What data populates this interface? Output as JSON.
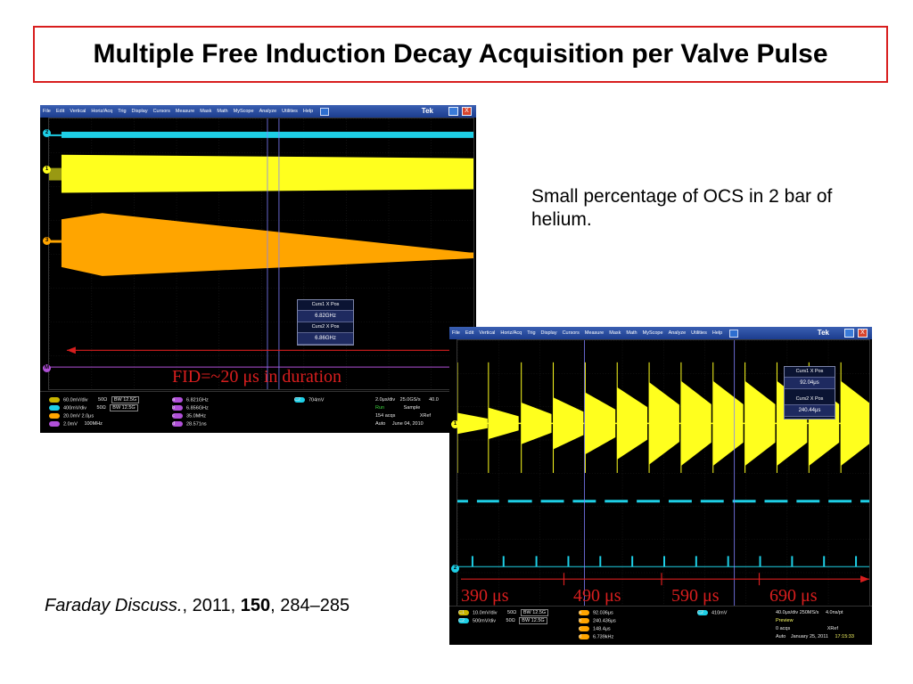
{
  "slide": {
    "title": "Multiple Free Induction Decay Acquisition per Valve Pulse",
    "note": "Small percentage of OCS in 2 bar of helium.",
    "citation": {
      "journal": "Faraday Discuss.",
      "sep1": ", ",
      "year": "2011",
      "sep2": ", ",
      "volume": "150",
      "sep3": ", ",
      "pages": "284–285"
    }
  },
  "colors": {
    "ch1": "#ffff1e",
    "ch2": "#1ecfe6",
    "ch3": "#ffa500",
    "annotation": "#d81e1e",
    "cursor": "#8080ff"
  },
  "menu": [
    "File",
    "Edit",
    "Vertical",
    "Horiz/Acq",
    "Trig",
    "Display",
    "Cursors",
    "Measure",
    "Mask",
    "Math",
    "MyScope",
    "Analyze",
    "Utilities",
    "Help"
  ],
  "brand": "Tek",
  "close_glyph": "X",
  "scope1": {
    "markers": {
      "ch2": "2",
      "ch1": "1",
      "ch3": "3",
      "math": "M"
    },
    "annotation": "FID=~20 μs in duration",
    "cursor_panel": {
      "t1": "Curs1 X Pos",
      "v1": "6.82GHz",
      "t2": "Curs2 X Pos",
      "v2": "6.86GHz"
    },
    "channels": [
      {
        "chip": "C1",
        "scale": "60.0mV/div",
        "imp": "50Ω",
        "bw": "BW 12.5G"
      },
      {
        "chip": "C2",
        "scale": "400mV/div",
        "imp": "50Ω",
        "bw": "BW 12.5G"
      },
      {
        "chip": "M1",
        "scale": "20.0mV",
        "time": "2.0μs"
      },
      {
        "chip": "M2",
        "scale": "2.0mV",
        "bw": "100MHz"
      }
    ],
    "measurements": [
      {
        "chip": "a",
        "value": "6.821GHz"
      },
      {
        "chip": "b",
        "value": "6.856GHz"
      },
      {
        "chip": "c",
        "value": "35.0MHz"
      },
      {
        "chip": "d",
        "value": "28.571ns"
      }
    ],
    "trigger": {
      "chip": "C2",
      "value": "704mV"
    },
    "timebase": {
      "div": "2.0μs/div",
      "rate": "25.0GS/s",
      "res": "40.0",
      "state": "Run",
      "mode": "Sample",
      "acqs": "154 acqs",
      "ref": "XRef",
      "auto": "Auto",
      "date": "June 04, 2010"
    }
  },
  "scope2": {
    "markers": {
      "ch1": "1",
      "ch2": "2"
    },
    "intervals": [
      "390 μs",
      "490 μs",
      "590 μs",
      "690 μs"
    ],
    "cursor_panel": {
      "t1": "Curs1 X Pos",
      "v1": "92.04μs",
      "t2": "Curs2 X Pos",
      "v2": "240.44μs"
    },
    "channels": [
      {
        "chip": "C1",
        "scale": "10.0mV/div",
        "imp": "50Ω",
        "bw": "BW 12.5G"
      },
      {
        "chip": "C2",
        "scale": "500mV/div",
        "imp": "50Ω",
        "bw": "BW 12.5G"
      }
    ],
    "measurements": [
      {
        "chip": "a",
        "value": "92.036μs"
      },
      {
        "chip": "b",
        "value": "240.436μs"
      },
      {
        "chip": "c",
        "value": "148.4μs"
      },
      {
        "chip": "d",
        "value": "6.739kHz"
      }
    ],
    "trigger": {
      "chip": "C2",
      "value": "410mV"
    },
    "timebase": {
      "div": "40.0μs/div",
      "rate": "250MS/s",
      "res": "4.0ns/pt",
      "state": "Preview",
      "acqs": "0 acqs",
      "ref": "XRef",
      "auto": "Auto",
      "date": "January 25, 2011",
      "time": "17:15:33"
    }
  }
}
